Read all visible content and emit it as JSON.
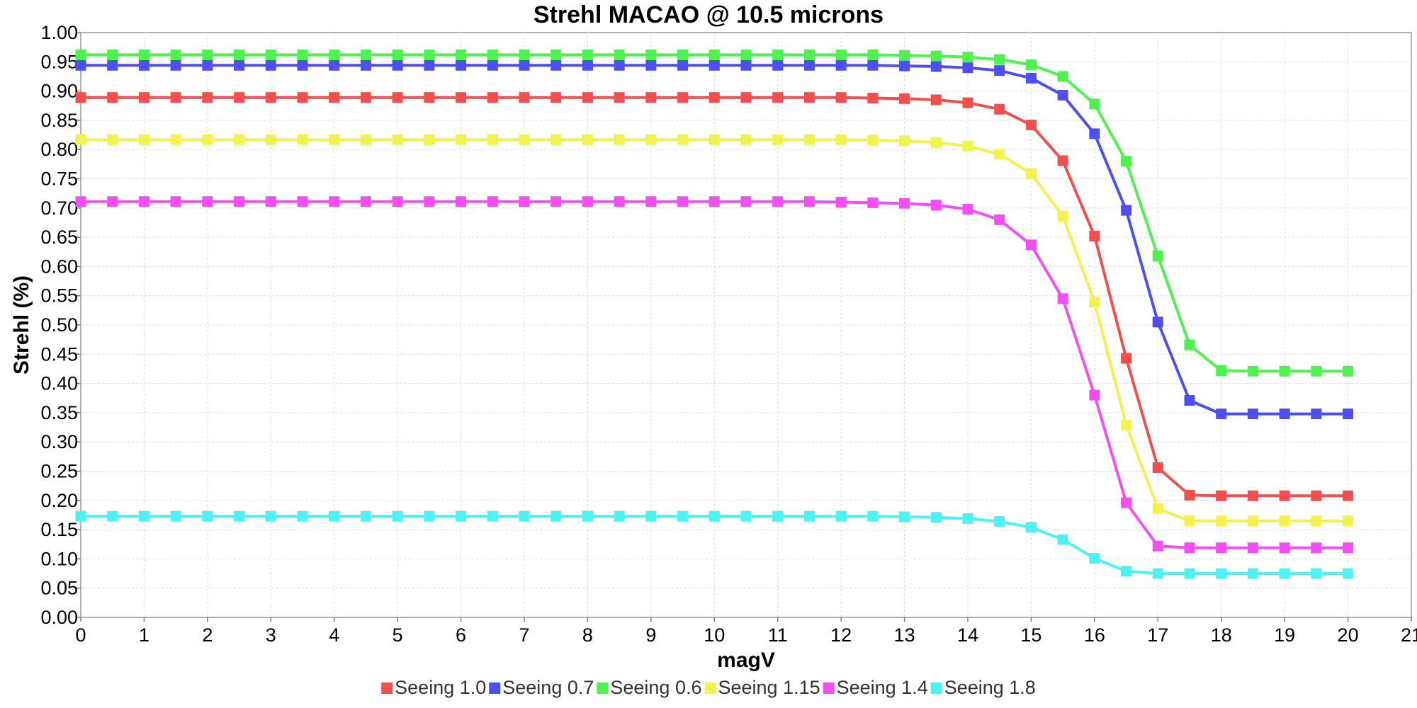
{
  "chart_data": {
    "type": "line",
    "title": "Strehl MACAO @ 10.5 microns",
    "xlabel": "magV",
    "ylabel": "Strehl (%)",
    "xlim": [
      0,
      21
    ],
    "ylim": [
      0,
      1.0
    ],
    "x_ticks": [
      "0",
      "1",
      "2",
      "3",
      "4",
      "5",
      "6",
      "7",
      "8",
      "9",
      "10",
      "11",
      "12",
      "13",
      "14",
      "15",
      "16",
      "17",
      "18",
      "19",
      "20",
      "21"
    ],
    "y_ticks": [
      "0.00",
      "0.05",
      "0.10",
      "0.15",
      "0.20",
      "0.25",
      "0.30",
      "0.35",
      "0.40",
      "0.45",
      "0.50",
      "0.55",
      "0.60",
      "0.65",
      "0.70",
      "0.75",
      "0.80",
      "0.85",
      "0.90",
      "0.95",
      "1.00"
    ],
    "grid": true,
    "legend_position": "bottom",
    "x": [
      0,
      0.5,
      1,
      1.5,
      2,
      2.5,
      3,
      3.5,
      4,
      4.5,
      5,
      5.5,
      6,
      6.5,
      7,
      7.5,
      8,
      8.5,
      9,
      9.5,
      10,
      10.5,
      11,
      11.5,
      12,
      12.5,
      13,
      13.5,
      14,
      14.5,
      15,
      15.5,
      16,
      16.5,
      17,
      17.5,
      18,
      18.5,
      19,
      19.5,
      20
    ],
    "series": [
      {
        "name": "Seeing 1.0",
        "color": "#f24e4e",
        "values": [
          0.889,
          0.889,
          0.889,
          0.889,
          0.889,
          0.889,
          0.889,
          0.889,
          0.889,
          0.889,
          0.889,
          0.889,
          0.889,
          0.889,
          0.889,
          0.889,
          0.889,
          0.889,
          0.889,
          0.889,
          0.889,
          0.889,
          0.889,
          0.889,
          0.889,
          0.888,
          0.887,
          0.885,
          0.88,
          0.869,
          0.842,
          0.781,
          0.652,
          0.443,
          0.256,
          0.209,
          0.208,
          0.208,
          0.208,
          0.208,
          0.208
        ]
      },
      {
        "name": "Seeing 0.7",
        "color": "#4e4ef2",
        "values": [
          0.944,
          0.944,
          0.944,
          0.944,
          0.944,
          0.944,
          0.944,
          0.944,
          0.944,
          0.944,
          0.944,
          0.944,
          0.944,
          0.944,
          0.944,
          0.944,
          0.944,
          0.944,
          0.944,
          0.944,
          0.944,
          0.944,
          0.944,
          0.944,
          0.944,
          0.944,
          0.943,
          0.942,
          0.94,
          0.935,
          0.922,
          0.893,
          0.827,
          0.696,
          0.505,
          0.371,
          0.348,
          0.348,
          0.348,
          0.348,
          0.348
        ]
      },
      {
        "name": "Seeing 0.6",
        "color": "#4ef24e",
        "values": [
          0.962,
          0.962,
          0.962,
          0.962,
          0.962,
          0.962,
          0.962,
          0.962,
          0.962,
          0.962,
          0.962,
          0.962,
          0.962,
          0.962,
          0.962,
          0.962,
          0.962,
          0.962,
          0.962,
          0.962,
          0.962,
          0.962,
          0.962,
          0.962,
          0.962,
          0.962,
          0.961,
          0.96,
          0.958,
          0.954,
          0.945,
          0.925,
          0.878,
          0.78,
          0.618,
          0.466,
          0.422,
          0.421,
          0.421,
          0.421,
          0.421
        ]
      },
      {
        "name": "Seeing 1.15",
        "color": "#f2f24e",
        "values": [
          0.817,
          0.817,
          0.817,
          0.817,
          0.817,
          0.817,
          0.817,
          0.817,
          0.817,
          0.817,
          0.817,
          0.817,
          0.817,
          0.817,
          0.817,
          0.817,
          0.817,
          0.817,
          0.817,
          0.817,
          0.817,
          0.817,
          0.817,
          0.817,
          0.817,
          0.816,
          0.815,
          0.812,
          0.806,
          0.792,
          0.759,
          0.686,
          0.539,
          0.329,
          0.186,
          0.165,
          0.165,
          0.165,
          0.165,
          0.165,
          0.165
        ]
      },
      {
        "name": "Seeing 1.4",
        "color": "#f24ef2",
        "values": [
          0.711,
          0.711,
          0.711,
          0.711,
          0.711,
          0.711,
          0.711,
          0.711,
          0.711,
          0.711,
          0.711,
          0.711,
          0.711,
          0.711,
          0.711,
          0.711,
          0.711,
          0.711,
          0.711,
          0.711,
          0.711,
          0.711,
          0.711,
          0.711,
          0.71,
          0.709,
          0.708,
          0.705,
          0.698,
          0.68,
          0.637,
          0.545,
          0.38,
          0.196,
          0.122,
          0.119,
          0.119,
          0.119,
          0.119,
          0.119,
          0.119
        ]
      },
      {
        "name": "Seeing 1.8",
        "color": "#4ef2f2",
        "values": [
          0.173,
          0.173,
          0.173,
          0.173,
          0.173,
          0.173,
          0.173,
          0.173,
          0.173,
          0.173,
          0.173,
          0.173,
          0.173,
          0.173,
          0.173,
          0.173,
          0.173,
          0.173,
          0.173,
          0.173,
          0.173,
          0.173,
          0.173,
          0.173,
          0.173,
          0.173,
          0.172,
          0.171,
          0.169,
          0.164,
          0.154,
          0.133,
          0.101,
          0.079,
          0.075,
          0.075,
          0.075,
          0.075,
          0.075,
          0.075,
          0.075
        ]
      }
    ]
  }
}
